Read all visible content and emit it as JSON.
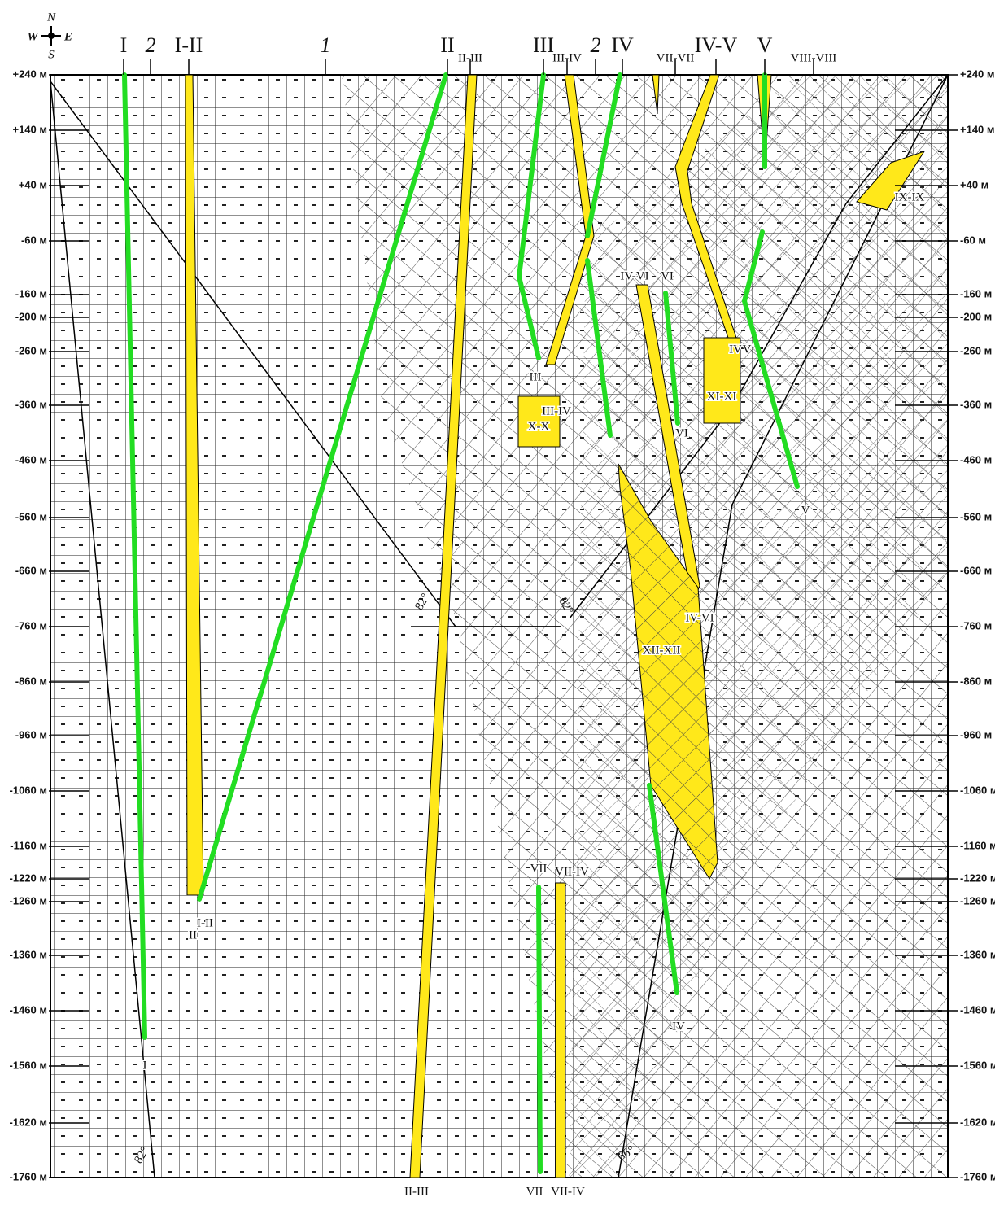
{
  "compass": {
    "n": "N",
    "w": "W",
    "e": "E",
    "s": "S"
  },
  "top_labels": [
    "I",
    "2",
    "I-II",
    "1",
    "II",
    "II-III",
    "III",
    "III-IV",
    "2",
    "IV",
    "VII-VII",
    "IV-V",
    "V",
    "VIII-VIII"
  ],
  "depth_labels": [
    "+240 м",
    "+140 м",
    "+40 м",
    "-60 м",
    "-160 м",
    "-200 м",
    "-260 м",
    "-360 м",
    "-460 м",
    "-560 м",
    "-660 м",
    "-760 м",
    "-860 м",
    "-960 м",
    "-1060 м",
    "-1160 м",
    "-1220 м",
    "-1260 м",
    "-1360 м",
    "-1460 м",
    "-1560 м",
    "-1620 м",
    "-1760 м"
  ],
  "section_labels": [
    "IX-IX",
    "IV-VI",
    "VI",
    "IV",
    "V",
    "XI-XI",
    "X-X",
    "III",
    "III-IV",
    "VI",
    "V",
    "IV-VI",
    "XII-XII",
    "VII",
    "VII-IV",
    "I-II",
    "II",
    "IV",
    "I",
    "II-III",
    "VII",
    "VII-IV"
  ],
  "angle_labels": [
    "82°",
    "82°",
    "82°",
    "66°"
  ]
}
